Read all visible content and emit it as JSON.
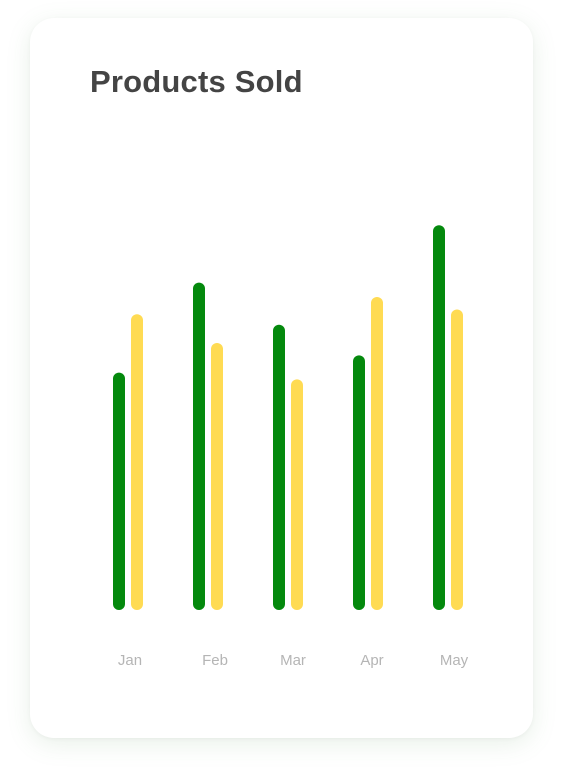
{
  "chart_data": {
    "type": "bar",
    "title": "Products Sold",
    "categories": [
      "Jan",
      "Feb",
      "Mar",
      "Apr",
      "May"
    ],
    "series": [
      {
        "color": "#04890D",
        "values": [
          248,
          342,
          298,
          266,
          402
        ]
      },
      {
        "color": "#FFDB53",
        "values": [
          309,
          279,
          241,
          327,
          314
        ]
      }
    ],
    "ylim": [
      0,
      420
    ],
    "grid": false,
    "legend": "none"
  }
}
